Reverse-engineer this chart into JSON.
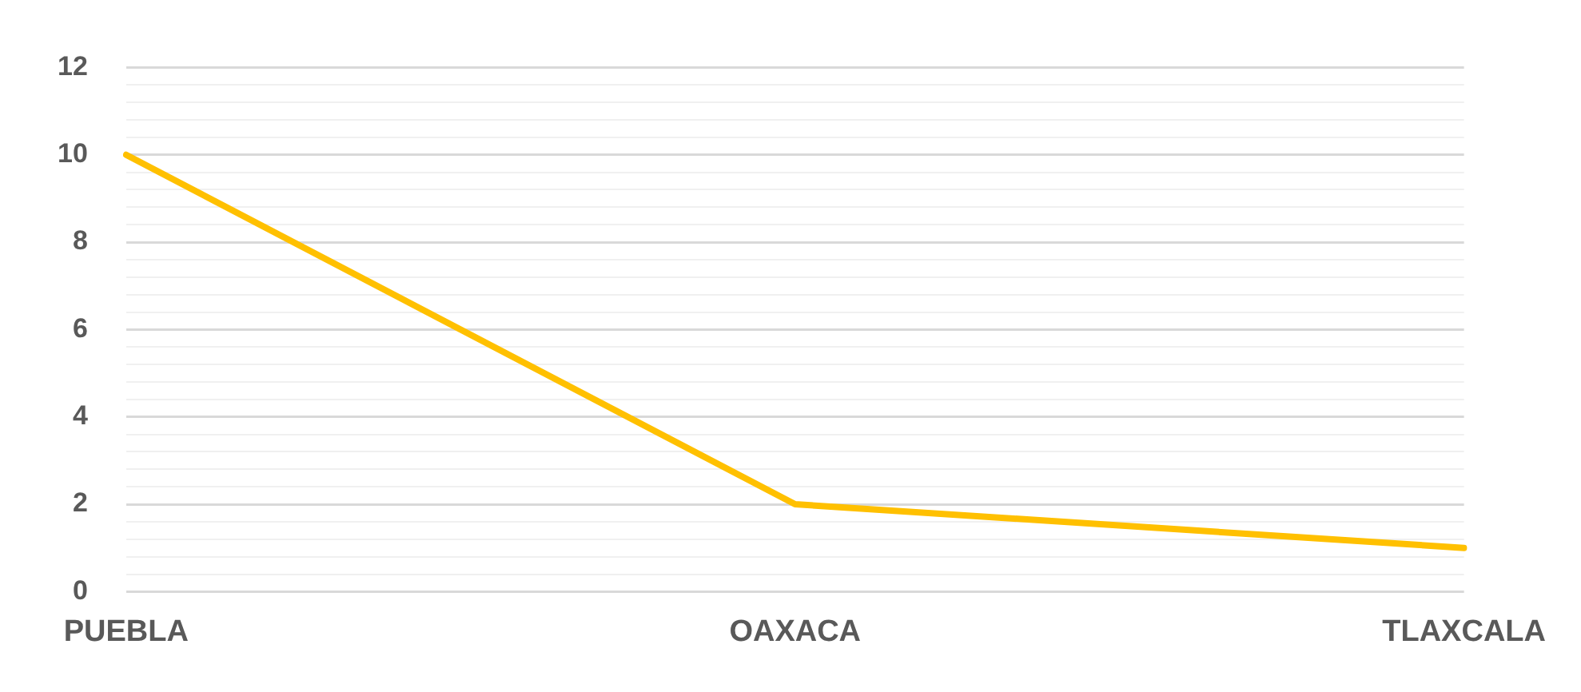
{
  "chart_data": {
    "type": "line",
    "categories": [
      "PUEBLA",
      "OAXACA",
      "TLAXCALA"
    ],
    "series": [
      {
        "color": "#ffc000",
        "values": [
          10,
          2,
          1
        ]
      }
    ],
    "ylim": [
      0,
      12
    ],
    "yticks": [
      0,
      {
        "value": 0.4,
        "label": null
      },
      {
        "value": 0.8,
        "label": null
      },
      {
        "value": 1.2,
        "label": null
      },
      {
        "value": 1.6,
        "label": null
      },
      2,
      {
        "value": 2.4,
        "label": null
      },
      {
        "value": 2.8,
        "label": null
      },
      {
        "value": 3.2,
        "label": null
      },
      {
        "value": 3.6,
        "label": null
      },
      4,
      {
        "value": 4.4,
        "label": null
      },
      {
        "value": 4.8,
        "label": null
      },
      {
        "value": 5.2,
        "label": null
      },
      {
        "value": 5.6,
        "label": null
      },
      6,
      {
        "value": 6.4,
        "label": null
      },
      {
        "value": 6.8,
        "label": null
      },
      {
        "value": 7.2,
        "label": null
      },
      {
        "value": 7.6,
        "label": null
      },
      8,
      {
        "value": 8.4,
        "label": null
      },
      {
        "value": 8.8,
        "label": null
      },
      {
        "value": 9.2,
        "label": null
      },
      {
        "value": 9.6,
        "label": null
      },
      10,
      {
        "value": 10.4,
        "label": null
      },
      {
        "value": 10.8,
        "label": null
      },
      {
        "value": 11.2,
        "label": null
      },
      {
        "value": 11.6,
        "label": null
      },
      12
    ],
    "grid": "y",
    "legend": false,
    "marker": "none",
    "line_style": "solid"
  }
}
